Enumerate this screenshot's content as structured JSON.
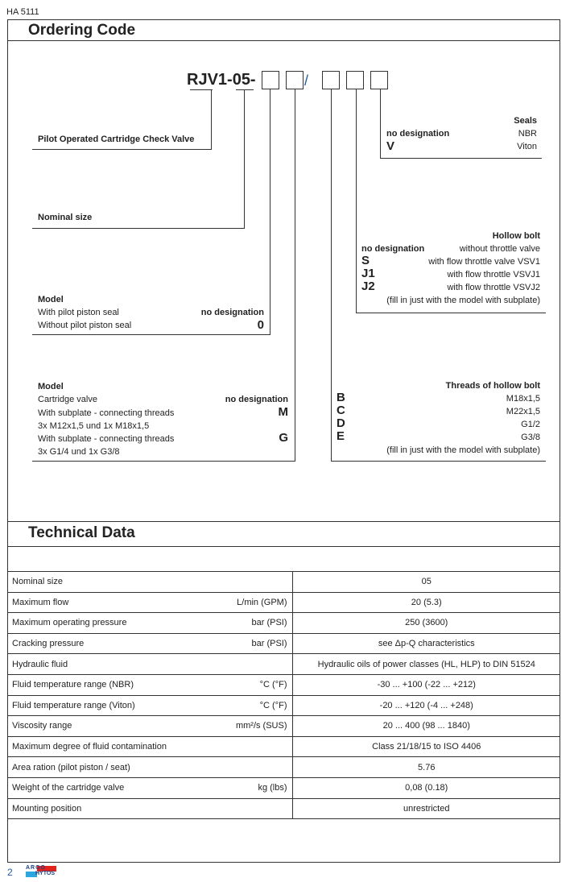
{
  "header": {
    "doc_id": "HA 5111"
  },
  "ordering": {
    "title": "Ordering Code",
    "code_prefix": "RJV1-05-",
    "slash": "/",
    "pilot": {
      "label": "Pilot Operated Cartridge Check Valve"
    },
    "nominal": {
      "label": "Nominal size"
    },
    "model1": {
      "title": "Model",
      "rows": [
        {
          "text": "With pilot piston seal",
          "code": "no designation"
        },
        {
          "text": "Without pilot piston seal",
          "code": "0"
        }
      ]
    },
    "model2": {
      "title": "Model",
      "rows": [
        {
          "text": "Cartridge valve",
          "code": "no designation"
        },
        {
          "text": "With subplate - connecting threads",
          "code": "M"
        },
        {
          "text": "3x M12x1,5 und 1x M18x1,5",
          "code": ""
        },
        {
          "text": "With subplate - connecting threads",
          "code": "G"
        },
        {
          "text": "3x G1/4 und 1x G3/8",
          "code": ""
        }
      ]
    },
    "seals": {
      "title": "Seals",
      "rows": [
        {
          "code": "no designation",
          "text": "NBR"
        },
        {
          "code": "V",
          "text": "Viton"
        }
      ]
    },
    "hollow": {
      "title": "Hollow bolt",
      "rows": [
        {
          "code": "no designation",
          "text": "without throttle valve"
        },
        {
          "code": "S",
          "text": "with flow throttle valve VSV1"
        },
        {
          "code": "J1",
          "text": "with flow throttle VSVJ1"
        },
        {
          "code": "J2",
          "text": "with flow throttle VSVJ2"
        }
      ],
      "note": "(fill in just with the model with subplate)"
    },
    "threads": {
      "title": "Threads of hollow bolt",
      "rows": [
        {
          "code": "B",
          "text": "M18x1,5"
        },
        {
          "code": "C",
          "text": "M22x1,5"
        },
        {
          "code": "D",
          "text": "G1/2"
        },
        {
          "code": "E",
          "text": "G3/8"
        }
      ],
      "note": "(fill in just with the model with subplate)"
    }
  },
  "technical": {
    "title": "Technical Data",
    "rows": [
      {
        "param": "Nominal size",
        "unit": "",
        "value": "05"
      },
      {
        "param": "Maximum flow",
        "unit": "L/min (GPM)",
        "value": "20 (5.3)"
      },
      {
        "param": "Maximum operating pressure",
        "unit": "bar (PSI)",
        "value": "250 (3600)"
      },
      {
        "param": "Cracking pressure",
        "unit": "bar (PSI)",
        "value": "see Δp-Q characteristics"
      },
      {
        "param": "Hydraulic fluid",
        "unit": "",
        "value": "Hydraulic oils of power classes (HL, HLP) to DIN 51524"
      },
      {
        "param": "Fluid temperature range (NBR)",
        "unit": "°C (°F)",
        "value": "-30 ... +100 (-22 ... +212)"
      },
      {
        "param": "Fluid temperature range (Viton)",
        "unit": "°C (°F)",
        "value": "-20 ... +120 (-4 ... +248)"
      },
      {
        "param": "Viscosity range",
        "unit": "mm²/s (SUS)",
        "value": "20 ... 400 (98 ... 1840)"
      },
      {
        "param": "Maximum degree of fluid contamination",
        "unit": "",
        "value": "Class 21/18/15 to ISO 4406"
      },
      {
        "param": "Area ration (pilot piston / seat)",
        "unit": "",
        "value": "5.76"
      },
      {
        "param": "Weight of the cartridge valve",
        "unit": "kg (lbs)",
        "value": "0,08 (0.18)"
      },
      {
        "param": "Mounting position",
        "unit": "",
        "value": "unrestricted"
      }
    ]
  },
  "footer": {
    "page": "2",
    "logo_top": "ARGO",
    "logo_bottom": "HYTOS",
    "logo_colors": {
      "red": "#e32219",
      "blue": "#2aa6e0"
    }
  }
}
